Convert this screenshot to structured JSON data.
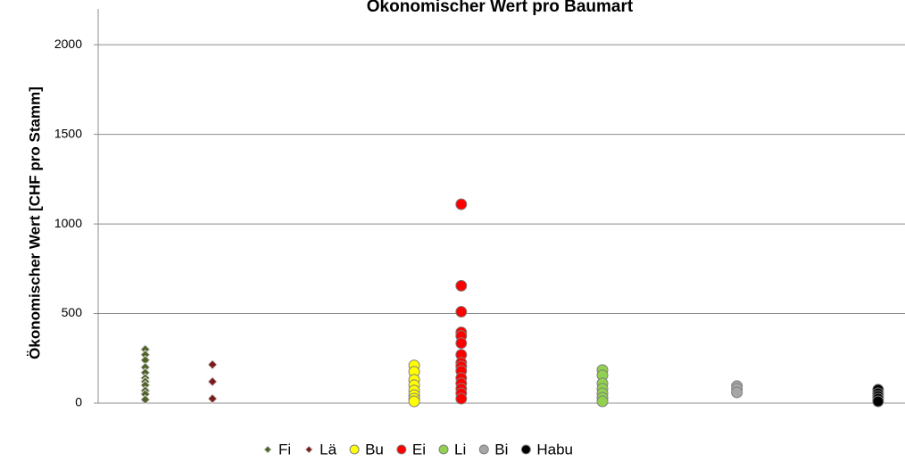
{
  "chart_data": {
    "type": "scatter",
    "title": "Ökonomischer Wert pro Baumart",
    "ylabel": "Ökonomischer Wert [CHF pro Stamm]",
    "xlim": [
      0,
      12
    ],
    "ylim": [
      0,
      2200
    ],
    "yticks": [
      0,
      500,
      1000,
      1500,
      2000
    ],
    "grid": true,
    "legend": "bottom",
    "series": [
      {
        "name": "Fi",
        "color": "#4f6228",
        "marker": "diamond",
        "x": [
          0.7,
          0.7,
          0.7,
          0.7,
          0.7,
          0.7,
          0.7,
          0.7,
          0.7,
          0.7,
          0.7
        ],
        "values": [
          300,
          270,
          240,
          200,
          170,
          140,
          120,
          100,
          70,
          50,
          20
        ]
      },
      {
        "name": "Lä",
        "color": "#7b1c1c",
        "marker": "diamond",
        "x": [
          1.7,
          1.7,
          1.7
        ],
        "values": [
          215,
          120,
          25
        ]
      },
      {
        "name": "Bu",
        "color": "#ffff00",
        "marker": "circle",
        "x": [
          4.7,
          4.7,
          4.7,
          4.7,
          4.7,
          4.7,
          4.7,
          4.7
        ],
        "values": [
          210,
          175,
          130,
          100,
          70,
          45,
          25,
          10
        ]
      },
      {
        "name": "Ei",
        "color": "#ff0000",
        "marker": "circle",
        "x": [
          5.4,
          5.4,
          5.4,
          5.4,
          5.4,
          5.4,
          5.4,
          5.4,
          5.4,
          5.4,
          5.4,
          5.4,
          5.4,
          5.4,
          5.4
        ],
        "values": [
          1110,
          655,
          510,
          395,
          375,
          335,
          270,
          225,
          205,
          180,
          140,
          110,
          80,
          55,
          25
        ]
      },
      {
        "name": "Li",
        "color": "#92d050",
        "marker": "circle",
        "x": [
          7.5,
          7.5,
          7.5,
          7.5,
          7.5,
          7.5,
          7.5
        ],
        "values": [
          185,
          155,
          110,
          80,
          55,
          30,
          10
        ]
      },
      {
        "name": "Bi",
        "color": "#a6a6a6",
        "marker": "circle",
        "x": [
          9.5,
          9.5,
          9.5
        ],
        "values": [
          95,
          80,
          60
        ]
      },
      {
        "name": "Habu",
        "color": "#000000",
        "marker": "circle",
        "x": [
          11.6,
          11.6,
          11.6,
          11.6,
          11.6
        ],
        "values": [
          75,
          55,
          40,
          25,
          10
        ]
      }
    ]
  }
}
